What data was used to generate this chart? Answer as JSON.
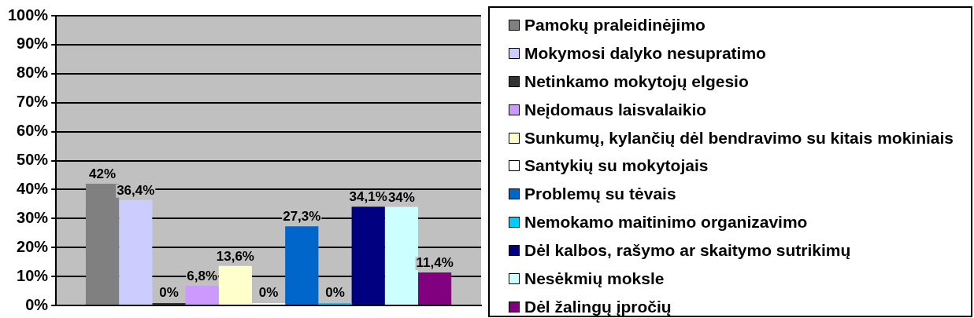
{
  "chart_data": {
    "type": "bar",
    "categories": [
      null
    ],
    "series": [
      {
        "name": "Pamokų praleidinėjimo",
        "color": "#808080",
        "values": [
          42
        ],
        "value_labels": [
          "42%"
        ]
      },
      {
        "name": "Mokymosi dalyko nesupratimo",
        "color": "#ccccff",
        "values": [
          36.4
        ],
        "value_labels": [
          "36,4%"
        ]
      },
      {
        "name": "Netinkamo mokytojų elgesio",
        "color": "#333333",
        "values": [
          0
        ],
        "value_labels": [
          "0%"
        ]
      },
      {
        "name": "Neįdomaus laisvalaikio",
        "color": "#cc99ff",
        "values": [
          6.8
        ],
        "value_labels": [
          "6,8%"
        ]
      },
      {
        "name": "Sunkumų, kylančių dėl bendravimo su kitais mokiniais",
        "color": "#ffffcc",
        "values": [
          13.6
        ],
        "value_labels": [
          "13,6%"
        ]
      },
      {
        "name": "Santykių su mokytojais",
        "color": "#ffffff",
        "values": [
          0
        ],
        "value_labels": [
          "0%"
        ]
      },
      {
        "name": "Problemų su tėvais",
        "color": "#0066cc",
        "values": [
          27.3
        ],
        "value_labels": [
          "27,3%"
        ]
      },
      {
        "name": "Nemokamo maitinimo organizavimo",
        "color": "#00ccff",
        "values": [
          0
        ],
        "value_labels": [
          "0%"
        ]
      },
      {
        "name": "Dėl kalbos, rašymo ar skaitymo sutrikimų",
        "color": "#000080",
        "values": [
          34.1
        ],
        "value_labels": [
          "34,1%"
        ]
      },
      {
        "name": "Nesėkmių moksle",
        "color": "#ccffff",
        "values": [
          34
        ],
        "value_labels": [
          "34%"
        ]
      },
      {
        "name": "Dėl žalingų įpročių",
        "color": "#800080",
        "values": [
          11.4
        ],
        "value_labels": [
          "11,4%"
        ]
      }
    ],
    "ylim": [
      0,
      100
    ],
    "yticks": [
      {
        "value": 0,
        "label": "0%"
      },
      {
        "value": 10,
        "label": "10%"
      },
      {
        "value": 20,
        "label": "20%"
      },
      {
        "value": 30,
        "label": "30%"
      },
      {
        "value": 40,
        "label": "40%"
      },
      {
        "value": 50,
        "label": "50%"
      },
      {
        "value": 60,
        "label": "60%"
      },
      {
        "value": 70,
        "label": "70%"
      },
      {
        "value": 80,
        "label": "80%"
      },
      {
        "value": 90,
        "label": "90%"
      },
      {
        "value": 100,
        "label": "100%"
      }
    ],
    "grid": "y",
    "legend": "right"
  }
}
